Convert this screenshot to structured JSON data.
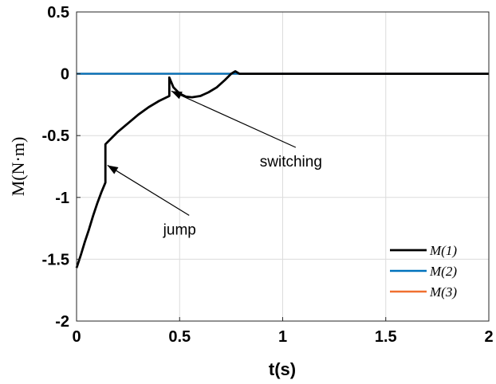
{
  "chart_data": {
    "type": "line",
    "title": "",
    "xlabel": "t(s)",
    "ylabel": "M(N·m)",
    "xlim": [
      0,
      2
    ],
    "ylim": [
      -2,
      0.5
    ],
    "xticks": [
      0,
      0.5,
      1,
      1.5,
      2
    ],
    "xtick_labels": [
      "0",
      "0.5",
      "1",
      "1.5",
      "2"
    ],
    "yticks": [
      0.5,
      0,
      -0.5,
      -1,
      -1.5,
      -2
    ],
    "ytick_labels": [
      "0.5",
      "0",
      "-0.5",
      "-1",
      "-1.5",
      "-2"
    ],
    "grid": true,
    "legend_position": "bottom-right",
    "series": [
      {
        "name": "M(1)",
        "color": "#000000",
        "x": [
          0,
          0.02,
          0.04,
          0.06,
          0.08,
          0.1,
          0.12,
          0.14,
          0.14,
          0.17,
          0.2,
          0.25,
          0.3,
          0.35,
          0.4,
          0.45,
          0.45,
          0.47,
          0.5,
          0.53,
          0.56,
          0.6,
          0.64,
          0.68,
          0.72,
          0.75,
          0.77,
          0.79,
          0.85,
          1.0,
          1.5,
          2.0
        ],
        "y": [
          -1.57,
          -1.47,
          -1.36,
          -1.26,
          -1.15,
          -1.05,
          -0.96,
          -0.88,
          -0.57,
          -0.52,
          -0.47,
          -0.4,
          -0.33,
          -0.27,
          -0.22,
          -0.18,
          -0.03,
          -0.11,
          -0.16,
          -0.185,
          -0.19,
          -0.18,
          -0.15,
          -0.11,
          -0.05,
          0.0,
          0.02,
          0.0,
          0.0,
          0.0,
          0.0,
          0.0
        ]
      },
      {
        "name": "M(2)",
        "color": "#0072BD",
        "x": [
          0,
          2
        ],
        "y": [
          0,
          0
        ]
      },
      {
        "name": "M(3)",
        "color": "#F07030",
        "x": [
          0,
          2
        ],
        "y": [
          0,
          0
        ]
      }
    ],
    "annotations": [
      {
        "text": "switching",
        "arrow_to": [
          0.46,
          -0.14
        ],
        "text_at": [
          1.04,
          -0.75
        ]
      },
      {
        "text": "jump",
        "arrow_to": [
          0.15,
          -0.74
        ],
        "text_at": [
          0.5,
          -1.3
        ]
      }
    ]
  }
}
